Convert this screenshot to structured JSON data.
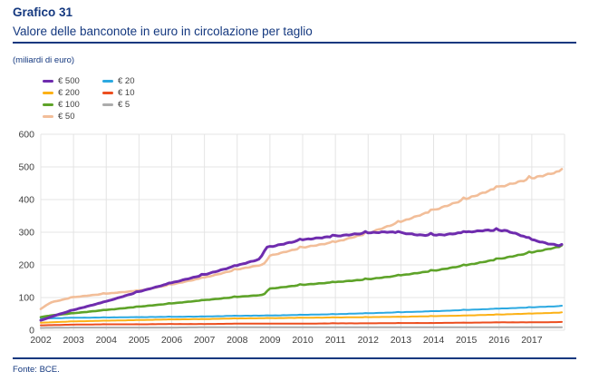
{
  "header": {
    "kicker": "Grafico 31",
    "title": "Valore delle banconote in euro in circolazione per taglio",
    "unit_label": "(miliardi di euro)"
  },
  "footer": {
    "source": "Fonte: BCE."
  },
  "colors": {
    "navy": "#14387F",
    "axis_text": "#3F3F3F",
    "grid": "#E4E4E4"
  },
  "chart_data": {
    "type": "line",
    "title": "Valore delle banconote in euro in circolazione per taglio",
    "unit": "miliardi di euro",
    "grid": true,
    "legend_position": "top-left",
    "x_axis": {
      "range": [
        2002,
        2018
      ],
      "ticks": [
        2002,
        2003,
        2004,
        2005,
        2006,
        2007,
        2008,
        2009,
        2010,
        2011,
        2012,
        2013,
        2014,
        2015,
        2016,
        2017
      ]
    },
    "y_axis": {
      "range": [
        0,
        600
      ],
      "ticks": [
        0,
        100,
        200,
        300,
        400,
        500,
        600
      ]
    },
    "series": [
      {
        "name": "€ 500",
        "color": "#6F2CAE",
        "width": 3,
        "points": [
          [
            2002,
            30
          ],
          [
            2002.5,
            47
          ],
          [
            2003,
            62
          ],
          [
            2004,
            88
          ],
          [
            2005,
            118
          ],
          [
            2006,
            145
          ],
          [
            2007,
            170
          ],
          [
            2008,
            198
          ],
          [
            2008.7,
            218
          ],
          [
            2008.85,
            247
          ],
          [
            2009,
            255
          ],
          [
            2010,
            277
          ],
          [
            2011,
            288
          ],
          [
            2012,
            298
          ],
          [
            2012.6,
            301
          ],
          [
            2013,
            298
          ],
          [
            2013.6,
            291
          ],
          [
            2014.3,
            292
          ],
          [
            2015,
            300
          ],
          [
            2015.6,
            306
          ],
          [
            2016.2,
            305
          ],
          [
            2016.6,
            293
          ],
          [
            2017,
            277
          ],
          [
            2017.5,
            265
          ],
          [
            2017.92,
            258
          ]
        ]
      },
      {
        "name": "€ 200",
        "color": "#FCB116",
        "width": 2,
        "points": [
          [
            2002,
            23
          ],
          [
            2003,
            27
          ],
          [
            2004,
            29
          ],
          [
            2005,
            31
          ],
          [
            2006,
            33
          ],
          [
            2007,
            34
          ],
          [
            2008,
            36
          ],
          [
            2009,
            37
          ],
          [
            2010,
            38
          ],
          [
            2011,
            39
          ],
          [
            2012,
            40
          ],
          [
            2013,
            41
          ],
          [
            2014,
            43
          ],
          [
            2015,
            45
          ],
          [
            2016,
            48
          ],
          [
            2017,
            51
          ],
          [
            2017.92,
            54
          ]
        ]
      },
      {
        "name": "€ 100",
        "color": "#5EA329",
        "width": 2.6,
        "points": [
          [
            2002,
            40
          ],
          [
            2002.3,
            45
          ],
          [
            2003,
            52
          ],
          [
            2004,
            62
          ],
          [
            2005,
            72
          ],
          [
            2006,
            82
          ],
          [
            2007,
            92
          ],
          [
            2008,
            102
          ],
          [
            2008.8,
            108
          ],
          [
            2008.95,
            122
          ],
          [
            2009,
            127
          ],
          [
            2010,
            139
          ],
          [
            2011,
            147
          ],
          [
            2012,
            156
          ],
          [
            2013,
            168
          ],
          [
            2014,
            182
          ],
          [
            2015,
            199
          ],
          [
            2016,
            218
          ],
          [
            2017,
            238
          ],
          [
            2017.92,
            257
          ]
        ]
      },
      {
        "name": "€ 50",
        "color": "#F2BE99",
        "width": 2.6,
        "points": [
          [
            2002,
            65
          ],
          [
            2002.3,
            85
          ],
          [
            2003,
            101
          ],
          [
            2004,
            112
          ],
          [
            2005,
            121
          ],
          [
            2006,
            140
          ],
          [
            2007,
            161
          ],
          [
            2008,
            186
          ],
          [
            2008.8,
            201
          ],
          [
            2008.95,
            217
          ],
          [
            2009,
            228
          ],
          [
            2010,
            253
          ],
          [
            2011,
            270
          ],
          [
            2012,
            297
          ],
          [
            2013,
            332
          ],
          [
            2014,
            367
          ],
          [
            2015,
            402
          ],
          [
            2016,
            438
          ],
          [
            2017,
            465
          ],
          [
            2017.92,
            488
          ]
        ]
      },
      {
        "name": "€ 20",
        "color": "#2CA9E1",
        "width": 2,
        "points": [
          [
            2002,
            36
          ],
          [
            2003,
            38
          ],
          [
            2004,
            39
          ],
          [
            2005,
            40
          ],
          [
            2006,
            41
          ],
          [
            2007,
            42
          ],
          [
            2008,
            44
          ],
          [
            2009,
            45
          ],
          [
            2010,
            47
          ],
          [
            2011,
            49
          ],
          [
            2012,
            52
          ],
          [
            2013,
            55
          ],
          [
            2014,
            58
          ],
          [
            2015,
            62
          ],
          [
            2016,
            66
          ],
          [
            2017,
            70
          ],
          [
            2017.92,
            74
          ]
        ]
      },
      {
        "name": "€ 10",
        "color": "#EC4E1F",
        "width": 2,
        "points": [
          [
            2002,
            15
          ],
          [
            2003,
            17
          ],
          [
            2004,
            18
          ],
          [
            2005,
            18
          ],
          [
            2006,
            19
          ],
          [
            2007,
            19
          ],
          [
            2008,
            20
          ],
          [
            2009,
            20
          ],
          [
            2010,
            20
          ],
          [
            2011,
            21
          ],
          [
            2012,
            21
          ],
          [
            2013,
            22
          ],
          [
            2014,
            22
          ],
          [
            2015,
            23
          ],
          [
            2016,
            24
          ],
          [
            2017,
            24
          ],
          [
            2017.92,
            25
          ]
        ]
      },
      {
        "name": "€ 5",
        "color": "#ACACAC",
        "width": 2,
        "points": [
          [
            2002,
            7
          ],
          [
            2003,
            8
          ],
          [
            2004,
            8
          ],
          [
            2005,
            8
          ],
          [
            2006,
            8
          ],
          [
            2007,
            9
          ],
          [
            2008,
            9
          ],
          [
            2009,
            9
          ],
          [
            2010,
            9
          ],
          [
            2011,
            9
          ],
          [
            2012,
            9
          ],
          [
            2013,
            9
          ],
          [
            2014,
            9
          ],
          [
            2015,
            9
          ],
          [
            2016,
            9
          ],
          [
            2017,
            9
          ],
          [
            2017.92,
            9
          ]
        ]
      }
    ]
  }
}
